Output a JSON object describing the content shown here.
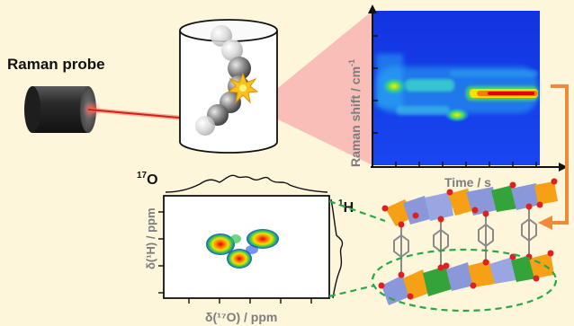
{
  "labels": {
    "raman_probe": "Raman probe",
    "raman_y_axis": "Raman shift / cm",
    "raman_y_axis_superscript": "-1",
    "raman_x_axis": "Time / s",
    "nmr_top_mass": "17",
    "nmr_top_element": "O",
    "nmr_right_mass": "1",
    "nmr_right_element": "H",
    "nmr_y_axis": "δ(¹H) / ppm",
    "nmr_x_axis": "δ(¹⁷O) / ppm"
  },
  "colors": {
    "background": "#fdf6da",
    "laser": "#e0201c",
    "heatmap_bg": "#1840e8",
    "arrow": "#f08a3a",
    "dashed": "#2aa748",
    "link_orange": "#f5a015",
    "link_blue": "#8a97d8",
    "link_green": "#33a33a"
  },
  "icons": {
    "probe": "cylinder-probe-icon",
    "vessel": "reaction-cylinder-icon",
    "spark": "starburst-icon"
  }
}
